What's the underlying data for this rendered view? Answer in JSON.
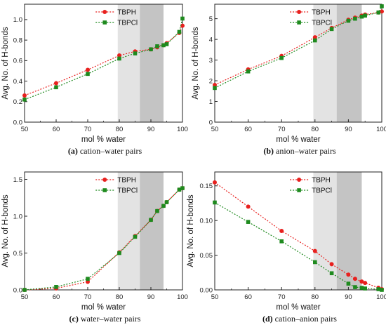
{
  "colors": {
    "TBPH": "#e8201e",
    "TBPCl": "#1e8a1e",
    "band_light": "#e3e3e3",
    "band_dark": "#c4c4c4"
  },
  "chart_data": [
    {
      "type": "line",
      "panel_letter": "(a)",
      "caption": "cation–water pairs",
      "xlabel": "mol % water",
      "ylabel": "Avg. No. of H-bonds",
      "xlim": [
        50,
        100
      ],
      "ylim": [
        0,
        1.15
      ],
      "xticks": [
        50,
        60,
        70,
        80,
        90,
        100
      ],
      "yticks": [
        0.0,
        0.2,
        0.4,
        0.6,
        0.8,
        1.0
      ],
      "yticklabels": [
        "0.0",
        "0.2",
        "0.4",
        "0.6",
        "0.8",
        "1.0"
      ],
      "shaded_regions": [
        [
          79.5,
          86.5
        ],
        [
          86.5,
          94
        ]
      ],
      "legend_position": "top-center",
      "series": [
        {
          "name": "TBPH",
          "marker": "circle",
          "x": [
            50,
            60,
            70,
            80,
            85,
            90,
            92,
            94,
            95,
            99,
            100
          ],
          "y": [
            0.26,
            0.38,
            0.51,
            0.65,
            0.69,
            0.71,
            0.73,
            0.75,
            0.77,
            0.87,
            0.94
          ]
        },
        {
          "name": "TBPCl",
          "marker": "square",
          "x": [
            50,
            60,
            70,
            80,
            85,
            90,
            92,
            94,
            95,
            99,
            100
          ],
          "y": [
            0.22,
            0.34,
            0.47,
            0.62,
            0.67,
            0.71,
            0.74,
            0.75,
            0.76,
            0.88,
            1.01
          ]
        }
      ]
    },
    {
      "type": "line",
      "panel_letter": "(b)",
      "caption": "anion–water pairs",
      "xlabel": "mol % water",
      "ylabel": "Avg. No. of H-bonds",
      "xlim": [
        50,
        100
      ],
      "ylim": [
        0,
        5.7
      ],
      "xticks": [
        50,
        60,
        70,
        80,
        90,
        100
      ],
      "yticks": [
        0,
        1,
        2,
        3,
        4,
        5
      ],
      "yticklabels": [
        "0",
        "1",
        "2",
        "3",
        "4",
        "5"
      ],
      "shaded_regions": [
        [
          79.5,
          86.5
        ],
        [
          86.5,
          94
        ]
      ],
      "legend_position": "top-center",
      "series": [
        {
          "name": "TBPH",
          "marker": "circle",
          "x": [
            50,
            60,
            70,
            80,
            85,
            90,
            92,
            94,
            95,
            99,
            100
          ],
          "y": [
            1.8,
            2.55,
            3.2,
            4.1,
            4.55,
            4.95,
            5.05,
            5.15,
            5.2,
            5.3,
            5.35
          ]
        },
        {
          "name": "TBPCl",
          "marker": "square",
          "x": [
            50,
            60,
            70,
            80,
            85,
            90,
            92,
            94,
            95,
            99,
            100
          ],
          "y": [
            1.65,
            2.45,
            3.1,
            3.95,
            4.5,
            4.9,
            5.0,
            5.1,
            5.15,
            5.3,
            5.6
          ]
        }
      ]
    },
    {
      "type": "line",
      "panel_letter": "(c)",
      "caption": "water–water pairs",
      "xlabel": "mol % water",
      "ylabel": "Avg. No. of H-bonds",
      "xlim": [
        50,
        100
      ],
      "ylim": [
        0,
        1.6
      ],
      "xticks": [
        50,
        60,
        70,
        80,
        90,
        100
      ],
      "yticks": [
        0.0,
        0.5,
        1.0,
        1.5
      ],
      "yticklabels": [
        "0.0",
        "0.5",
        "1.0",
        "1.5"
      ],
      "shaded_regions": [
        [
          79.5,
          86.5
        ],
        [
          86.5,
          94
        ]
      ],
      "legend_position": "top-center",
      "series": [
        {
          "name": "TBPH",
          "marker": "circle",
          "x": [
            50,
            60,
            70,
            80,
            85,
            90,
            92,
            94,
            95,
            99,
            100
          ],
          "y": [
            0.0,
            0.02,
            0.11,
            0.51,
            0.73,
            0.95,
            1.07,
            1.14,
            1.19,
            1.36,
            1.38
          ]
        },
        {
          "name": "TBPCl",
          "marker": "square",
          "x": [
            50,
            60,
            70,
            80,
            85,
            90,
            92,
            94,
            95,
            99,
            100
          ],
          "y": [
            0.0,
            0.04,
            0.15,
            0.5,
            0.72,
            0.95,
            1.07,
            1.14,
            1.19,
            1.36,
            1.38
          ]
        }
      ]
    },
    {
      "type": "line",
      "panel_letter": "(d)",
      "caption": "cation–anion pairs",
      "xlabel": "mol % water",
      "ylabel": "Avg. No. of H-bonds",
      "xlim": [
        50,
        100
      ],
      "ylim": [
        0,
        0.17
      ],
      "xticks": [
        50,
        60,
        70,
        80,
        90,
        100
      ],
      "yticks": [
        0.0,
        0.05,
        0.1,
        0.15
      ],
      "yticklabels": [
        "0.00",
        "0.05",
        "0.10",
        "0.15"
      ],
      "shaded_regions": [
        [
          79.5,
          86.5
        ],
        [
          86.5,
          94
        ]
      ],
      "legend_position": "top-center",
      "series": [
        {
          "name": "TBPH",
          "marker": "circle",
          "x": [
            50,
            60,
            70,
            80,
            85,
            90,
            92,
            94,
            95,
            99,
            100
          ],
          "y": [
            0.155,
            0.12,
            0.085,
            0.056,
            0.037,
            0.022,
            0.016,
            0.012,
            0.01,
            0.003,
            0.001
          ]
        },
        {
          "name": "TBPCl",
          "marker": "square",
          "x": [
            50,
            60,
            70,
            80,
            85,
            90,
            92,
            94,
            95,
            99,
            100
          ],
          "y": [
            0.126,
            0.098,
            0.07,
            0.04,
            0.024,
            0.009,
            0.004,
            0.003,
            0.002,
            0.001,
            0.0
          ]
        }
      ]
    }
  ]
}
